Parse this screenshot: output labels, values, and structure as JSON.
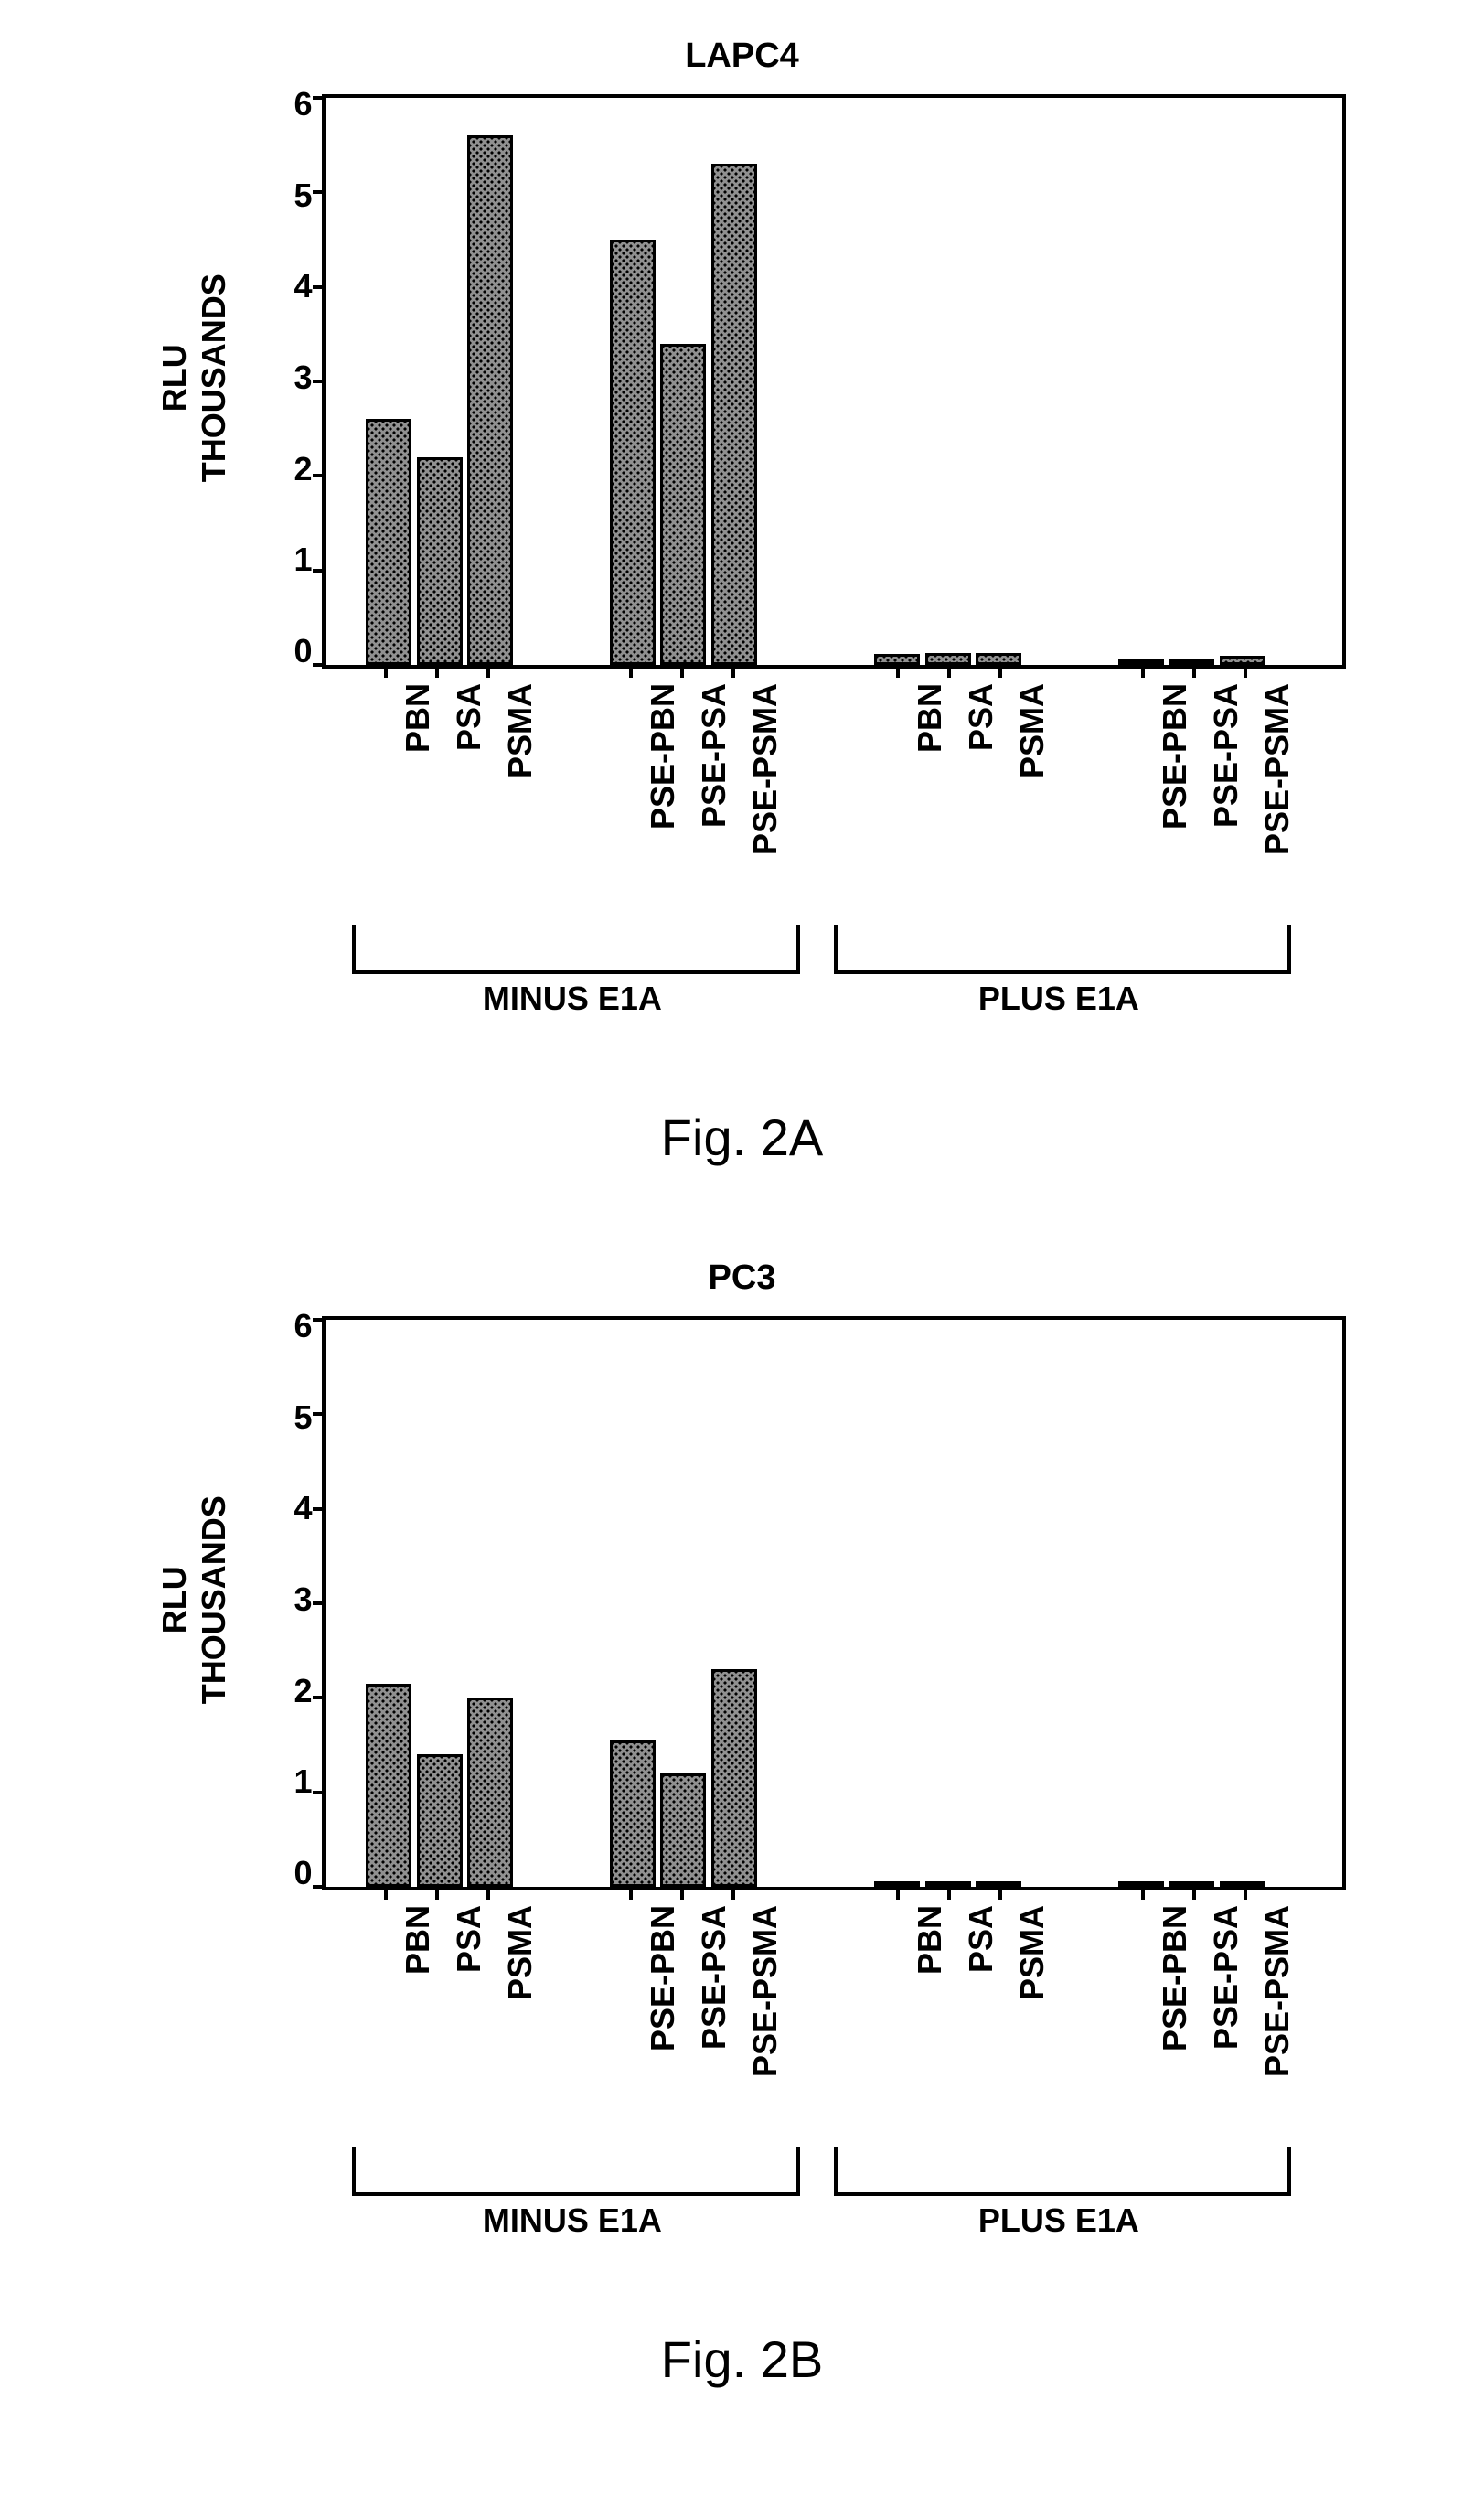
{
  "figures": [
    {
      "caption": "Fig. 2A",
      "chart": {
        "type": "bar",
        "title": "LAPC4",
        "y_title_line1": "RLU",
        "y_title_line2": "THOUSANDS",
        "ylim": [
          0,
          6
        ],
        "ytick_step": 1,
        "yticks": [
          0,
          1,
          2,
          3,
          4,
          5,
          6
        ],
        "bar_width_pct": 4.5,
        "bar_border_color": "#000000",
        "bar_fill_color": "#909090",
        "background_color": "#ffffff",
        "x_positions_pct": [
          4,
          9,
          14,
          28,
          33,
          38,
          54,
          59,
          64,
          78,
          83,
          88
        ],
        "categories": [
          "PBN",
          "PSA",
          "PSMA",
          "PSE-PBN",
          "PSE-PSA",
          "PSE-PSMA",
          "PBN",
          "PSA",
          "PSMA",
          "PSE-PBN",
          "PSE-PSA",
          "PSE-PSMA"
        ],
        "values": [
          2.6,
          2.2,
          5.6,
          4.5,
          3.4,
          5.3,
          0.12,
          0.13,
          0.13,
          0.02,
          0.02,
          0.1
        ],
        "groups": [
          {
            "label": "MINUS E1A",
            "start_pct": 3,
            "end_pct": 46
          },
          {
            "label": "PLUS E1A",
            "start_pct": 50,
            "end_pct": 94
          }
        ]
      }
    },
    {
      "caption": "Fig. 2B",
      "chart": {
        "type": "bar",
        "title": "PC3",
        "y_title_line1": "RLU",
        "y_title_line2": "THOUSANDS",
        "ylim": [
          0,
          6
        ],
        "ytick_step": 1,
        "yticks": [
          0,
          1,
          2,
          3,
          4,
          5,
          6
        ],
        "bar_width_pct": 4.5,
        "bar_border_color": "#000000",
        "bar_fill_color": "#909090",
        "background_color": "#ffffff",
        "x_positions_pct": [
          4,
          9,
          14,
          28,
          33,
          38,
          54,
          59,
          64,
          78,
          83,
          88
        ],
        "categories": [
          "PBN",
          "PSA",
          "PSMA",
          "PSE-PBN",
          "PSE-PSA",
          "PSE-PSMA",
          "PBN",
          "PSA",
          "PSMA",
          "PSE-PBN",
          "PSE-PSA",
          "PSE-PSMA"
        ],
        "values": [
          2.15,
          1.4,
          2.0,
          1.55,
          1.2,
          2.3,
          0.02,
          0.02,
          0.02,
          0.02,
          0.02,
          0.02
        ],
        "groups": [
          {
            "label": "MINUS E1A",
            "start_pct": 3,
            "end_pct": 46
          },
          {
            "label": "PLUS E1A",
            "start_pct": 50,
            "end_pct": 94
          }
        ]
      }
    }
  ]
}
